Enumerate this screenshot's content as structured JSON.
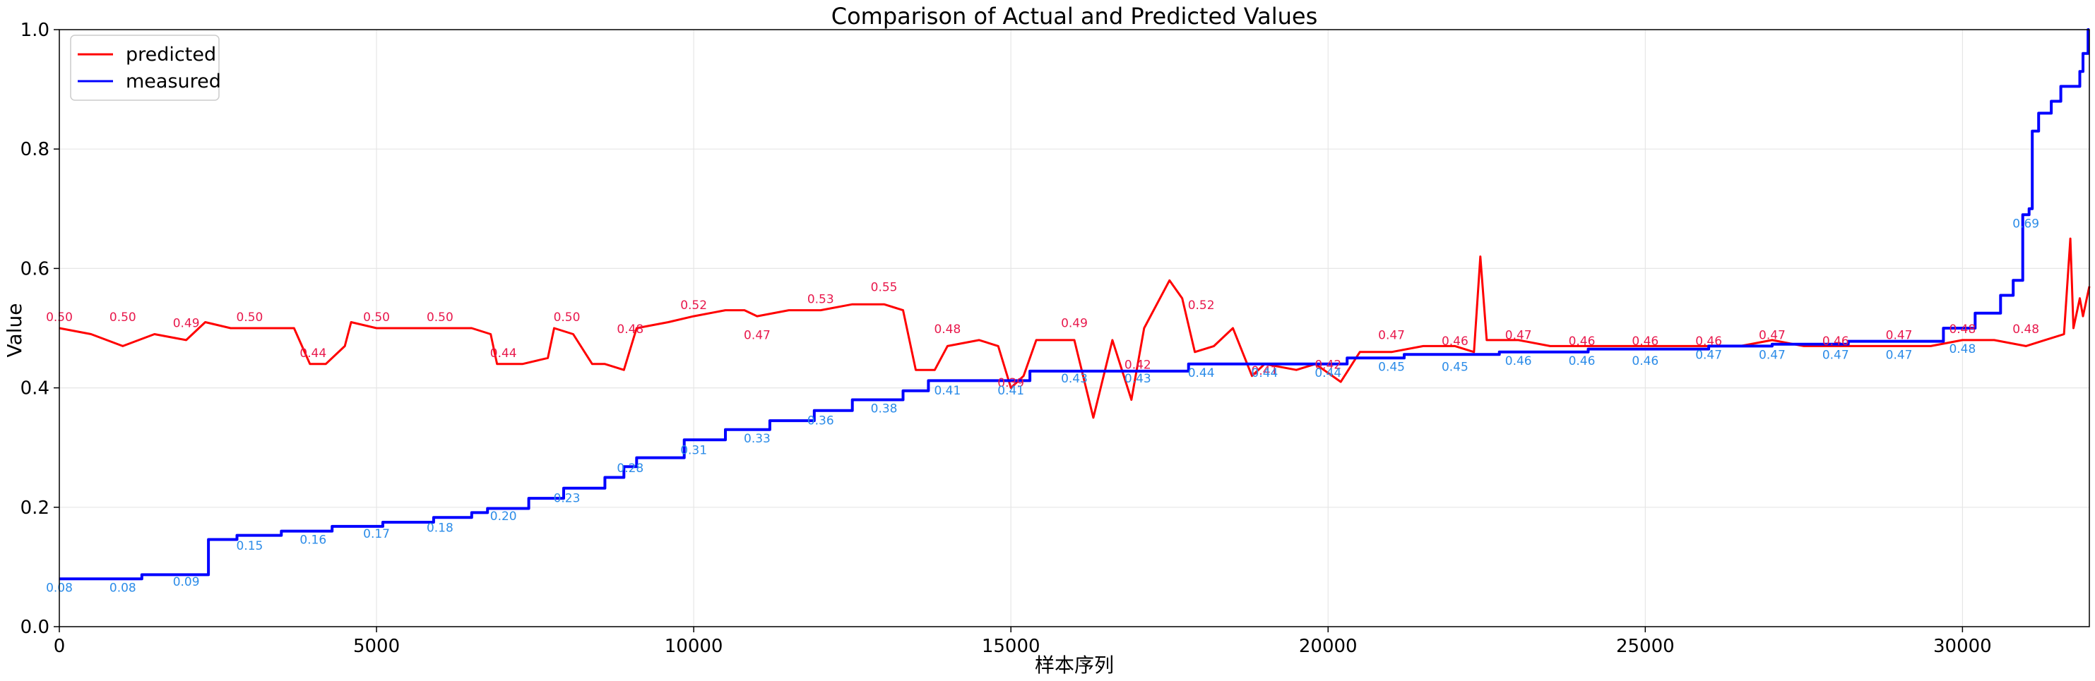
{
  "chart_data": {
    "type": "line",
    "title": "Comparison of Actual and Predicted Values",
    "xlabel": "样本序列",
    "ylabel": "Value",
    "xlim": [
      0,
      32000
    ],
    "ylim": [
      0,
      1.0
    ],
    "xticks": [
      0,
      5000,
      10000,
      15000,
      20000,
      25000,
      30000
    ],
    "yticks": [
      0.0,
      0.2,
      0.4,
      0.6,
      0.8,
      1.0
    ],
    "xtick_labels": [
      "0",
      "5000",
      "10000",
      "15000",
      "20000",
      "25000",
      "30000"
    ],
    "ytick_labels": [
      "0.0",
      "0.2",
      "0.4",
      "0.6",
      "0.8",
      "1.0"
    ],
    "grid": true,
    "legend_position": "top-left",
    "series": [
      {
        "name": "predicted",
        "color": "#ff0000",
        "points": [
          [
            0,
            0.5
          ],
          [
            500,
            0.49
          ],
          [
            1000,
            0.47
          ],
          [
            1500,
            0.49
          ],
          [
            2000,
            0.48
          ],
          [
            2300,
            0.51
          ],
          [
            2700,
            0.5
          ],
          [
            3200,
            0.5
          ],
          [
            3700,
            0.5
          ],
          [
            3950,
            0.44
          ],
          [
            4200,
            0.44
          ],
          [
            4500,
            0.47
          ],
          [
            4600,
            0.51
          ],
          [
            5000,
            0.5
          ],
          [
            5500,
            0.5
          ],
          [
            6000,
            0.5
          ],
          [
            6500,
            0.5
          ],
          [
            6800,
            0.49
          ],
          [
            6900,
            0.44
          ],
          [
            7300,
            0.44
          ],
          [
            7700,
            0.45
          ],
          [
            7800,
            0.5
          ],
          [
            8100,
            0.49
          ],
          [
            8400,
            0.44
          ],
          [
            8600,
            0.44
          ],
          [
            8900,
            0.43
          ],
          [
            9100,
            0.5
          ],
          [
            9600,
            0.51
          ],
          [
            10000,
            0.52
          ],
          [
            10500,
            0.53
          ],
          [
            10800,
            0.53
          ],
          [
            11000,
            0.52
          ],
          [
            11500,
            0.53
          ],
          [
            12000,
            0.53
          ],
          [
            12500,
            0.54
          ],
          [
            13000,
            0.54
          ],
          [
            13300,
            0.53
          ],
          [
            13500,
            0.43
          ],
          [
            13800,
            0.43
          ],
          [
            14000,
            0.47
          ],
          [
            14500,
            0.48
          ],
          [
            14800,
            0.47
          ],
          [
            15000,
            0.4
          ],
          [
            15200,
            0.42
          ],
          [
            15400,
            0.48
          ],
          [
            16000,
            0.48
          ],
          [
            16300,
            0.35
          ],
          [
            16600,
            0.48
          ],
          [
            16900,
            0.38
          ],
          [
            17100,
            0.5
          ],
          [
            17500,
            0.58
          ],
          [
            17700,
            0.55
          ],
          [
            17900,
            0.46
          ],
          [
            18200,
            0.47
          ],
          [
            18500,
            0.5
          ],
          [
            18800,
            0.42
          ],
          [
            19000,
            0.44
          ],
          [
            19500,
            0.43
          ],
          [
            19800,
            0.44
          ],
          [
            20200,
            0.41
          ],
          [
            20500,
            0.46
          ],
          [
            21000,
            0.46
          ],
          [
            21500,
            0.47
          ],
          [
            22000,
            0.47
          ],
          [
            22300,
            0.46
          ],
          [
            22400,
            0.62
          ],
          [
            22500,
            0.48
          ],
          [
            23000,
            0.48
          ],
          [
            23500,
            0.47
          ],
          [
            24000,
            0.47
          ],
          [
            24500,
            0.47
          ],
          [
            25000,
            0.47
          ],
          [
            25500,
            0.47
          ],
          [
            26000,
            0.47
          ],
          [
            26500,
            0.47
          ],
          [
            27000,
            0.48
          ],
          [
            27500,
            0.47
          ],
          [
            28000,
            0.47
          ],
          [
            28500,
            0.47
          ],
          [
            29000,
            0.47
          ],
          [
            29500,
            0.47
          ],
          [
            30000,
            0.48
          ],
          [
            30500,
            0.48
          ],
          [
            31000,
            0.47
          ],
          [
            31300,
            0.48
          ],
          [
            31600,
            0.49
          ],
          [
            31700,
            0.65
          ],
          [
            31750,
            0.5
          ],
          [
            31850,
            0.55
          ],
          [
            31900,
            0.52
          ],
          [
            32000,
            0.57
          ]
        ],
        "annotations": [
          [
            0,
            0.5,
            "0.50"
          ],
          [
            1000,
            0.5,
            "0.50"
          ],
          [
            2000,
            0.49,
            "0.49"
          ],
          [
            3000,
            0.5,
            "0.50"
          ],
          [
            4000,
            0.44,
            "0.44"
          ],
          [
            5000,
            0.5,
            "0.50"
          ],
          [
            6000,
            0.5,
            "0.50"
          ],
          [
            7000,
            0.44,
            "0.44"
          ],
          [
            8000,
            0.5,
            "0.50"
          ],
          [
            9000,
            0.48,
            "0.48"
          ],
          [
            10000,
            0.52,
            "0.52"
          ],
          [
            11000,
            0.47,
            "0.47"
          ],
          [
            12000,
            0.53,
            "0.53"
          ],
          [
            13000,
            0.55,
            "0.55"
          ],
          [
            14000,
            0.48,
            "0.48"
          ],
          [
            15000,
            0.39,
            "0.39"
          ],
          [
            16000,
            0.49,
            "0.49"
          ],
          [
            17000,
            0.42,
            "0.42"
          ],
          [
            18000,
            0.52,
            "0.52"
          ],
          [
            19000,
            0.41,
            "0.41"
          ],
          [
            20000,
            0.42,
            "0.42"
          ],
          [
            21000,
            0.47,
            "0.47"
          ],
          [
            22000,
            0.46,
            "0.46"
          ],
          [
            23000,
            0.47,
            "0.47"
          ],
          [
            24000,
            0.46,
            "0.46"
          ],
          [
            25000,
            0.46,
            "0.46"
          ],
          [
            26000,
            0.46,
            "0.46"
          ],
          [
            27000,
            0.47,
            "0.47"
          ],
          [
            28000,
            0.46,
            "0.46"
          ],
          [
            29000,
            0.47,
            "0.47"
          ],
          [
            30000,
            0.48,
            "0.48"
          ],
          [
            31000,
            0.48,
            "0.48"
          ]
        ]
      },
      {
        "name": "measured",
        "color": "#0000ff",
        "points": [
          [
            0,
            0.08
          ],
          [
            1300,
            0.08
          ],
          [
            1300,
            0.087
          ],
          [
            2350,
            0.087
          ],
          [
            2350,
            0.146
          ],
          [
            2800,
            0.146
          ],
          [
            2800,
            0.153
          ],
          [
            3500,
            0.153
          ],
          [
            3500,
            0.16
          ],
          [
            4300,
            0.16
          ],
          [
            4300,
            0.168
          ],
          [
            5100,
            0.168
          ],
          [
            5100,
            0.175
          ],
          [
            5900,
            0.175
          ],
          [
            5900,
            0.183
          ],
          [
            6500,
            0.183
          ],
          [
            6500,
            0.191
          ],
          [
            6750,
            0.191
          ],
          [
            6750,
            0.198
          ],
          [
            7400,
            0.198
          ],
          [
            7400,
            0.215
          ],
          [
            7950,
            0.215
          ],
          [
            7950,
            0.232
          ],
          [
            8600,
            0.232
          ],
          [
            8600,
            0.25
          ],
          [
            8900,
            0.25
          ],
          [
            8900,
            0.268
          ],
          [
            9100,
            0.268
          ],
          [
            9100,
            0.283
          ],
          [
            9850,
            0.283
          ],
          [
            9850,
            0.313
          ],
          [
            10500,
            0.313
          ],
          [
            10500,
            0.33
          ],
          [
            11200,
            0.33
          ],
          [
            11200,
            0.345
          ],
          [
            11900,
            0.345
          ],
          [
            11900,
            0.362
          ],
          [
            12500,
            0.362
          ],
          [
            12500,
            0.38
          ],
          [
            13300,
            0.38
          ],
          [
            13300,
            0.395
          ],
          [
            13700,
            0.395
          ],
          [
            13700,
            0.412
          ],
          [
            15300,
            0.412
          ],
          [
            15300,
            0.428
          ],
          [
            17800,
            0.428
          ],
          [
            17800,
            0.44
          ],
          [
            20300,
            0.44
          ],
          [
            20300,
            0.45
          ],
          [
            21200,
            0.45
          ],
          [
            21200,
            0.456
          ],
          [
            22700,
            0.456
          ],
          [
            22700,
            0.46
          ],
          [
            24100,
            0.46
          ],
          [
            24100,
            0.465
          ],
          [
            26000,
            0.465
          ],
          [
            26000,
            0.47
          ],
          [
            27000,
            0.47
          ],
          [
            27000,
            0.473
          ],
          [
            28200,
            0.473
          ],
          [
            28200,
            0.478
          ],
          [
            29700,
            0.478
          ],
          [
            29700,
            0.5
          ],
          [
            30200,
            0.5
          ],
          [
            30200,
            0.525
          ],
          [
            30600,
            0.525
          ],
          [
            30600,
            0.555
          ],
          [
            30800,
            0.555
          ],
          [
            30800,
            0.58
          ],
          [
            30950,
            0.58
          ],
          [
            30950,
            0.69
          ],
          [
            31050,
            0.69
          ],
          [
            31050,
            0.7
          ],
          [
            31100,
            0.7
          ],
          [
            31100,
            0.83
          ],
          [
            31200,
            0.83
          ],
          [
            31200,
            0.86
          ],
          [
            31400,
            0.86
          ],
          [
            31400,
            0.88
          ],
          [
            31550,
            0.88
          ],
          [
            31550,
            0.905
          ],
          [
            31850,
            0.905
          ],
          [
            31850,
            0.93
          ],
          [
            31900,
            0.93
          ],
          [
            31900,
            0.96
          ],
          [
            31980,
            0.96
          ],
          [
            31980,
            1.0
          ],
          [
            32000,
            1.0
          ]
        ],
        "annotations": [
          [
            0,
            0.08,
            "0.08"
          ],
          [
            1000,
            0.08,
            "0.08"
          ],
          [
            2000,
            0.09,
            "0.09"
          ],
          [
            3000,
            0.15,
            "0.15"
          ],
          [
            4000,
            0.16,
            "0.16"
          ],
          [
            5000,
            0.17,
            "0.17"
          ],
          [
            6000,
            0.18,
            "0.18"
          ],
          [
            7000,
            0.2,
            "0.20"
          ],
          [
            8000,
            0.23,
            "0.23"
          ],
          [
            9000,
            0.28,
            "0.28"
          ],
          [
            10000,
            0.31,
            "0.31"
          ],
          [
            11000,
            0.33,
            "0.33"
          ],
          [
            12000,
            0.36,
            "0.36"
          ],
          [
            13000,
            0.38,
            "0.38"
          ],
          [
            14000,
            0.41,
            "0.41"
          ],
          [
            15000,
            0.41,
            "0.41"
          ],
          [
            16000,
            0.43,
            "0.43"
          ],
          [
            17000,
            0.43,
            "0.43"
          ],
          [
            18000,
            0.44,
            "0.44"
          ],
          [
            19000,
            0.44,
            "0.44"
          ],
          [
            20000,
            0.44,
            "0.44"
          ],
          [
            21000,
            0.45,
            "0.45"
          ],
          [
            22000,
            0.45,
            "0.45"
          ],
          [
            23000,
            0.46,
            "0.46"
          ],
          [
            24000,
            0.46,
            "0.46"
          ],
          [
            25000,
            0.46,
            "0.46"
          ],
          [
            26000,
            0.47,
            "0.47"
          ],
          [
            27000,
            0.47,
            "0.47"
          ],
          [
            28000,
            0.47,
            "0.47"
          ],
          [
            29000,
            0.47,
            "0.47"
          ],
          [
            30000,
            0.48,
            "0.48"
          ],
          [
            31000,
            0.69,
            "0.69"
          ]
        ]
      }
    ]
  }
}
